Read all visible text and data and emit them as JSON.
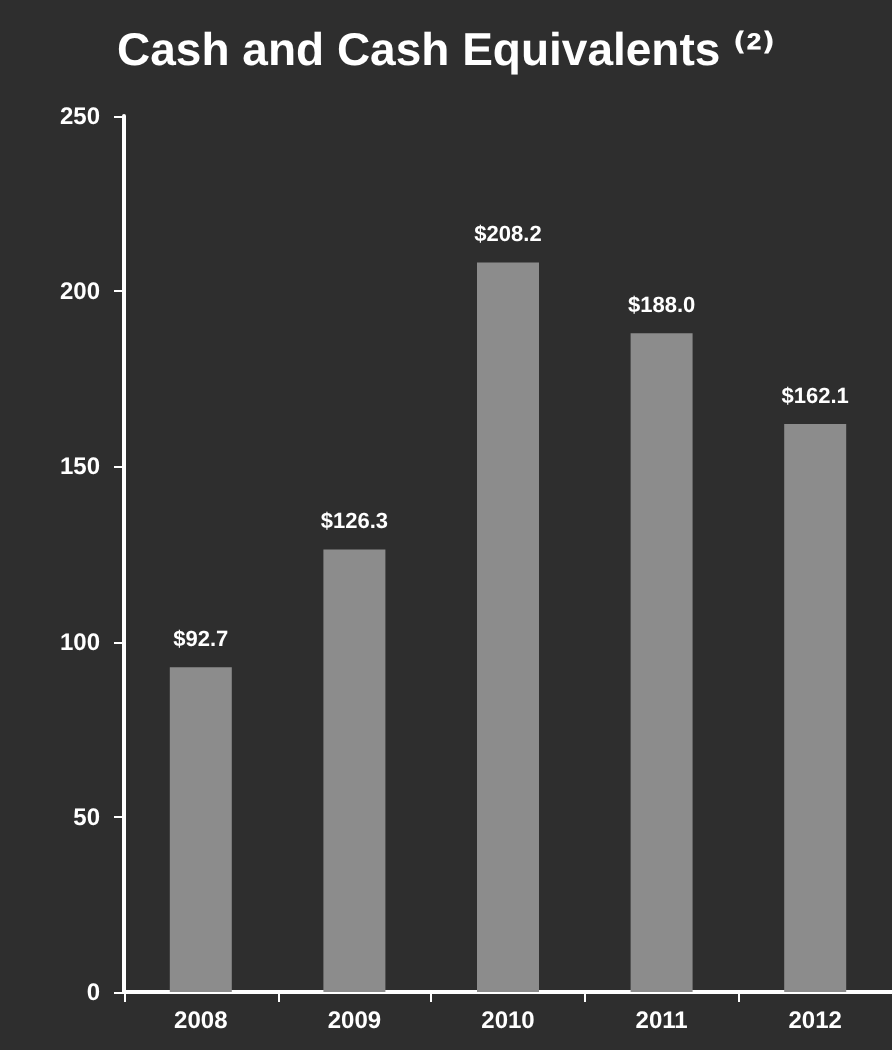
{
  "chart_data": {
    "type": "bar",
    "title": "Cash and Cash Equivalents ⁽²⁾",
    "categories": [
      "2008",
      "2009",
      "2010",
      "2011",
      "2012"
    ],
    "values": [
      92.7,
      126.3,
      208.2,
      188.0,
      162.1
    ],
    "value_labels": [
      "$92.7",
      "$126.3",
      "$208.2",
      "$188.0",
      "$162.1"
    ],
    "color": "#8c8c8c",
    "ylim": [
      0,
      250
    ],
    "yticks": [
      0,
      50,
      100,
      150,
      200,
      250
    ]
  }
}
